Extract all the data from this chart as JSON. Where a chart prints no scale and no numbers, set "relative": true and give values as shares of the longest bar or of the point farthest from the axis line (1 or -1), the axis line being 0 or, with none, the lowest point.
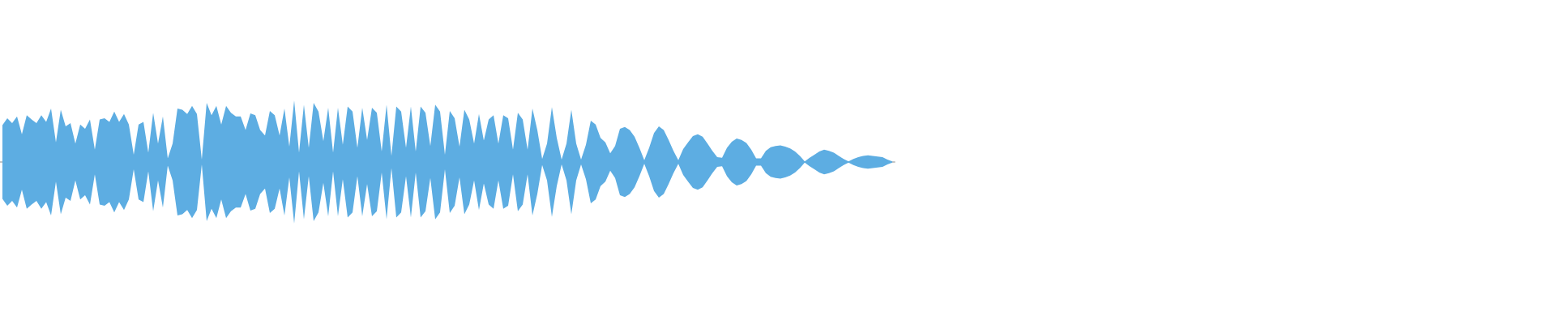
{
  "chart_data": {
    "type": "area",
    "relative": true,
    "categories": [
      null,
      null,
      null,
      null,
      null,
      null,
      null,
      null,
      null,
      null,
      null,
      null,
      null,
      null,
      null,
      null,
      null,
      null,
      null,
      null,
      null,
      null,
      null,
      null,
      null,
      null,
      null,
      null,
      null,
      null,
      null,
      null,
      null,
      null,
      null,
      null,
      null,
      null,
      null,
      null,
      null,
      null,
      null,
      null,
      null,
      null,
      null,
      null,
      null,
      null,
      null,
      null,
      null,
      null,
      null,
      null,
      null,
      null,
      null,
      null,
      null,
      null,
      null,
      null,
      null,
      null,
      null,
      null,
      null,
      null,
      null,
      null,
      null,
      null,
      null,
      null,
      null,
      null,
      null,
      null,
      null,
      null,
      null,
      null,
      null,
      null,
      null,
      null,
      null,
      null,
      null,
      null,
      null,
      null,
      null,
      null,
      null,
      null,
      null,
      null,
      null,
      null,
      null,
      null,
      null,
      null,
      null,
      null,
      null,
      null,
      null,
      null,
      null,
      null,
      null,
      null,
      null,
      null,
      null,
      null,
      null,
      null,
      null,
      null,
      null,
      null,
      null,
      null,
      null,
      null,
      null,
      null,
      null,
      null,
      null,
      null,
      null,
      null,
      null,
      null,
      null,
      null,
      null,
      null,
      null,
      null,
      null,
      null,
      null,
      null,
      null,
      null,
      null,
      null,
      null,
      null,
      null,
      null,
      null,
      null,
      null,
      null,
      null,
      null,
      null,
      null,
      null,
      null,
      null,
      null,
      null,
      null,
      null,
      null,
      null,
      null,
      null,
      null,
      null,
      null,
      null,
      null,
      null,
      null
    ],
    "series": [
      {
        "color": "#5dade2",
        "values": [
          0.6,
          0.71,
          0.63,
          0.74,
          0.45,
          0.76,
          0.69,
          0.63,
          0.76,
          0.65,
          0.87,
          0.32,
          0.85,
          0.58,
          0.63,
          0.3,
          0.61,
          0.54,
          0.69,
          0.2,
          0.69,
          0.71,
          0.65,
          0.82,
          0.65,
          0.78,
          0.61,
          0.12,
          0.61,
          0.65,
          0.15,
          0.8,
          0.3,
          0.74,
          0.06,
          0.3,
          0.87,
          0.85,
          0.78,
          0.91,
          0.78,
          0.04,
          0.96,
          0.76,
          0.91,
          0.61,
          0.91,
          0.8,
          0.74,
          0.74,
          0.52,
          0.79,
          0.76,
          0.52,
          0.43,
          0.83,
          0.76,
          0.43,
          0.87,
          0.25,
          1,
          0.15,
          0.93,
          0.23,
          0.96,
          0.82,
          0.34,
          0.88,
          0.15,
          0.88,
          0.28,
          0.9,
          0.82,
          0.23,
          0.88,
          0.36,
          0.88,
          0.8,
          0.17,
          0.93,
          0.1,
          0.9,
          0.82,
          0.23,
          0.9,
          0.17,
          0.9,
          0.8,
          0.26,
          0.93,
          0.82,
          0.12,
          0.83,
          0.71,
          0.25,
          0.85,
          0.69,
          0.3,
          0.78,
          0.35,
          0.69,
          0.76,
          0.3,
          0.76,
          0.71,
          0.2,
          0.8,
          0.69,
          0.2,
          0.87,
          0.52,
          0.05,
          0.3,
          0.89,
          0.39,
          0.04,
          0.3,
          0.85,
          0.3,
          0.04,
          0.28,
          0.67,
          0.61,
          0.39,
          0.32,
          0.14,
          0.26,
          0.54,
          0.57,
          0.52,
          0.41,
          0.23,
          0.03,
          0.23,
          0.47,
          0.58,
          0.52,
          0.36,
          0.18,
          0.03,
          0.21,
          0.32,
          0.42,
          0.45,
          0.41,
          0.3,
          0.18,
          0.08,
          0.07,
          0.23,
          0.33,
          0.38,
          0.36,
          0.31,
          0.2,
          0.06,
          0.06,
          0.18,
          0.24,
          0.26,
          0.27,
          0.25,
          0.22,
          0.17,
          0.1,
          0.01,
          0.07,
          0.12,
          0.17,
          0.2,
          0.18,
          0.15,
          0.1,
          0.05,
          0.01,
          0.05,
          0.08,
          0.1,
          0.11,
          0.1,
          0.09,
          0.08,
          0.04,
          0.01
        ]
      },
      {
        "color": "#5dade2",
        "values": [
          -0.6,
          -0.71,
          -0.63,
          -0.74,
          -0.45,
          -0.76,
          -0.69,
          -0.63,
          -0.76,
          -0.65,
          -0.87,
          -0.32,
          -0.85,
          -0.58,
          -0.63,
          -0.3,
          -0.61,
          -0.54,
          -0.69,
          -0.2,
          -0.69,
          -0.71,
          -0.65,
          -0.82,
          -0.65,
          -0.78,
          -0.61,
          -0.12,
          -0.61,
          -0.65,
          -0.15,
          -0.8,
          -0.3,
          -0.74,
          -0.06,
          -0.3,
          -0.87,
          -0.85,
          -0.78,
          -0.91,
          -0.78,
          -0.04,
          -0.96,
          -0.76,
          -0.91,
          -0.61,
          -0.91,
          -0.8,
          -0.74,
          -0.74,
          -0.52,
          -0.79,
          -0.76,
          -0.52,
          -0.43,
          -0.83,
          -0.76,
          -0.43,
          -0.87,
          -0.25,
          -1,
          -0.15,
          -0.93,
          -0.23,
          -0.96,
          -0.82,
          -0.34,
          -0.88,
          -0.15,
          -0.88,
          -0.28,
          -0.9,
          -0.82,
          -0.23,
          -0.88,
          -0.36,
          -0.88,
          -0.8,
          -0.17,
          -0.93,
          -0.1,
          -0.9,
          -0.82,
          -0.23,
          -0.9,
          -0.17,
          -0.9,
          -0.8,
          -0.26,
          -0.93,
          -0.82,
          -0.12,
          -0.83,
          -0.71,
          -0.25,
          -0.85,
          -0.69,
          -0.3,
          -0.78,
          -0.35,
          -0.69,
          -0.76,
          -0.3,
          -0.76,
          -0.71,
          -0.2,
          -0.8,
          -0.69,
          -0.2,
          -0.87,
          -0.52,
          -0.05,
          -0.3,
          -0.89,
          -0.39,
          -0.04,
          -0.3,
          -0.85,
          -0.3,
          -0.04,
          -0.28,
          -0.67,
          -0.61,
          -0.39,
          -0.32,
          -0.14,
          -0.26,
          -0.54,
          -0.57,
          -0.52,
          -0.41,
          -0.23,
          -0.03,
          -0.23,
          -0.47,
          -0.58,
          -0.52,
          -0.36,
          -0.18,
          -0.03,
          -0.21,
          -0.32,
          -0.42,
          -0.45,
          -0.41,
          -0.3,
          -0.18,
          -0.08,
          -0.07,
          -0.23,
          -0.33,
          -0.38,
          -0.36,
          -0.31,
          -0.2,
          -0.06,
          -0.06,
          -0.18,
          -0.24,
          -0.26,
          -0.27,
          -0.25,
          -0.22,
          -0.17,
          -0.1,
          -0.01,
          -0.07,
          -0.12,
          -0.17,
          -0.2,
          -0.18,
          -0.15,
          -0.1,
          -0.05,
          -0.01,
          -0.05,
          -0.08,
          -0.1,
          -0.11,
          -0.1,
          -0.09,
          -0.08,
          -0.04,
          -0.01
        ]
      }
    ]
  }
}
